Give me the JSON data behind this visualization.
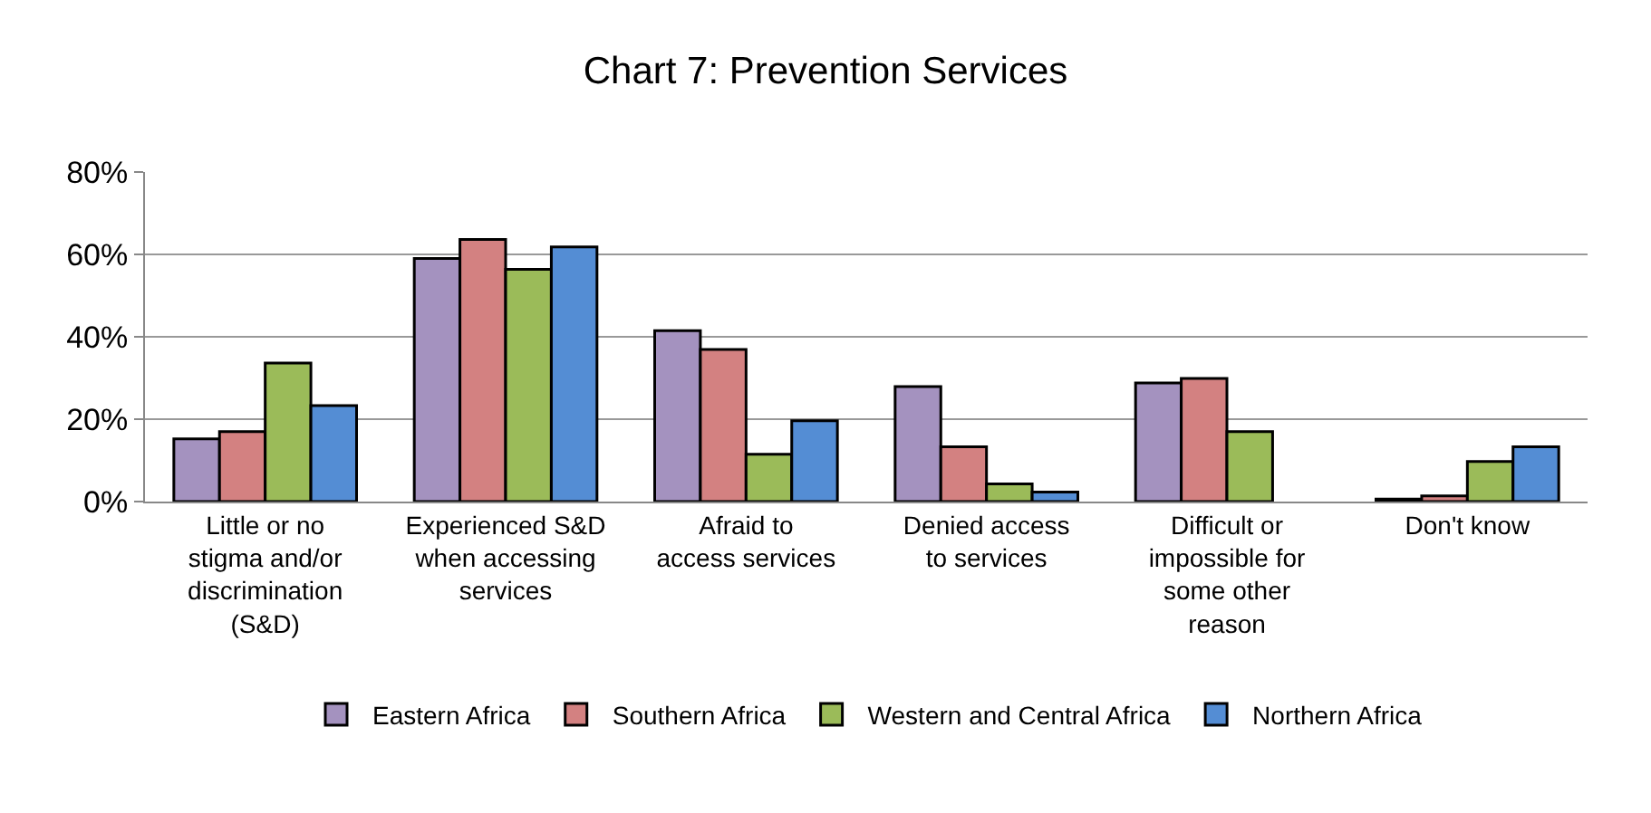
{
  "chart_data": {
    "type": "bar",
    "title": "Chart 7: Prevention Services",
    "categories": [
      "Little or no stigma and/or discrimination (S&D)",
      "Experienced S&D when accessing services",
      "Afraid to access services",
      "Denied access to services",
      "Difficult or impossible for some other reason",
      "Don't know"
    ],
    "series": [
      {
        "name": "Eastern Africa",
        "color": "#a492bf",
        "values": [
          15.2,
          59,
          41.5,
          27.9,
          28.8,
          0.6
        ]
      },
      {
        "name": "Southern Africa",
        "color": "#d38181",
        "values": [
          17,
          63.6,
          36.9,
          13.3,
          29.9,
          1.4
        ]
      },
      {
        "name": "Western and Central Africa",
        "color": "#9bbb59",
        "values": [
          33.6,
          56.4,
          11.5,
          4.3,
          17,
          9.7
        ]
      },
      {
        "name": "Northern Africa",
        "color": "#548dd4",
        "values": [
          23.3,
          61.8,
          19.6,
          2.3,
          null,
          13.3
        ]
      }
    ],
    "ylim": [
      0,
      80
    ],
    "yticks": [
      {
        "value": 0,
        "label": "0%"
      },
      {
        "value": 20,
        "label": "20%"
      },
      {
        "value": 40,
        "label": "40%"
      },
      {
        "value": 60,
        "label": "60%"
      },
      {
        "value": 80,
        "label": "80%"
      }
    ],
    "grid": "y",
    "legend": "bottom"
  }
}
